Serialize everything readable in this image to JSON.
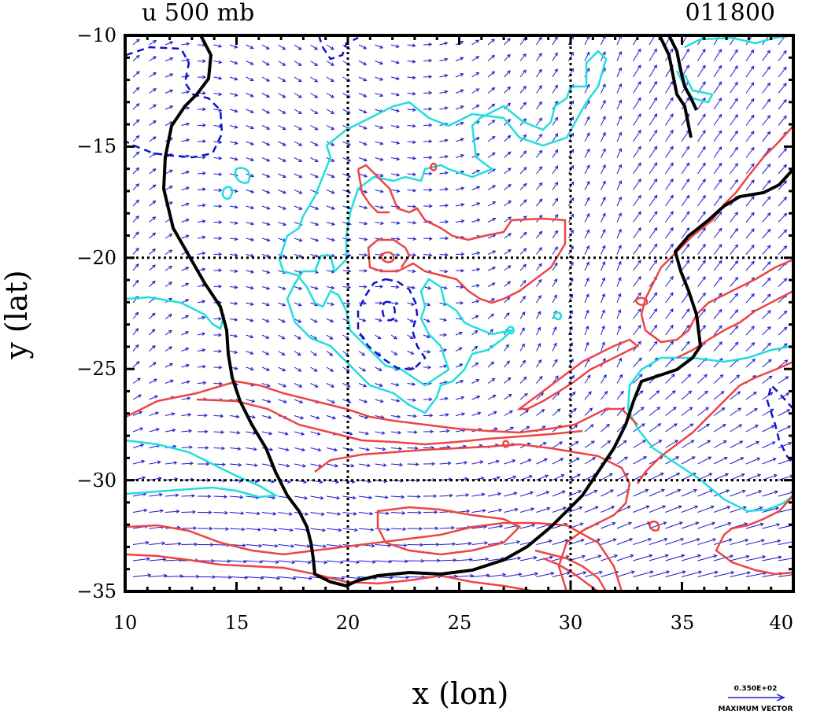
{
  "header": {
    "field_label": "u 500 mb",
    "timestamp": "011800"
  },
  "axes": {
    "xlabel": "x (lon)",
    "ylabel": "y (lat)",
    "x_ticks": [
      "10",
      "15",
      "20",
      "25",
      "30",
      "35",
      "40"
    ],
    "y_ticks": [
      "−10",
      "−15",
      "−20",
      "−25",
      "−30",
      "−35"
    ],
    "xlim": [
      10,
      40
    ],
    "ylim": [
      -35,
      -10
    ],
    "gridlines_lon": [
      20,
      30
    ],
    "gridlines_lat": [
      -20,
      -30
    ]
  },
  "legend": {
    "vector_value": "0.350E+02",
    "vector_caption": "MAXIMUM VECTOR"
  },
  "colors": {
    "coastline": "#000000",
    "positive_contour": "#ee4444",
    "cyan_contour": "#22dddd",
    "negative_contour": "#1111cc",
    "vectors": "#1a1acc"
  }
}
